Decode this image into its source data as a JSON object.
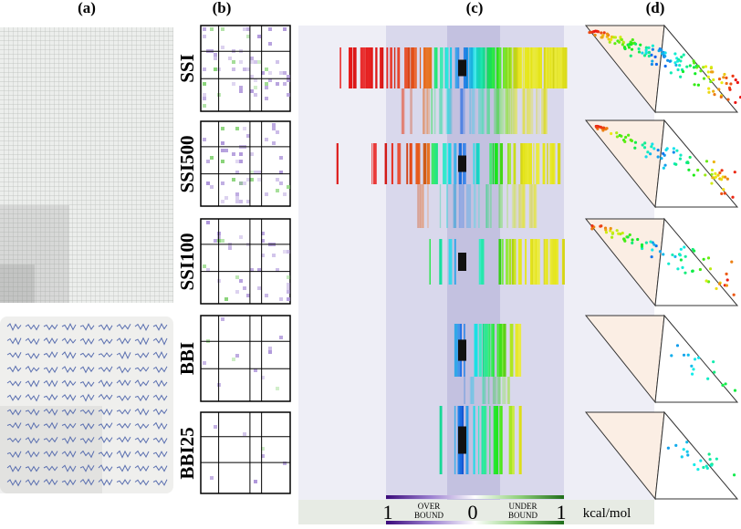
{
  "panels": [
    "(a)",
    "(b)",
    "(c)",
    "(d)"
  ],
  "rows": [
    "SSI",
    "SSI500",
    "SSI100",
    "BBI",
    "BBI25"
  ],
  "colorbar": {
    "left": "1",
    "over_lines": [
      "OVER",
      "BOUND"
    ],
    "center": "0",
    "under_lines": [
      "UNDER",
      "BOUND"
    ],
    "right": "1",
    "unit": "kcal/mol"
  }
}
